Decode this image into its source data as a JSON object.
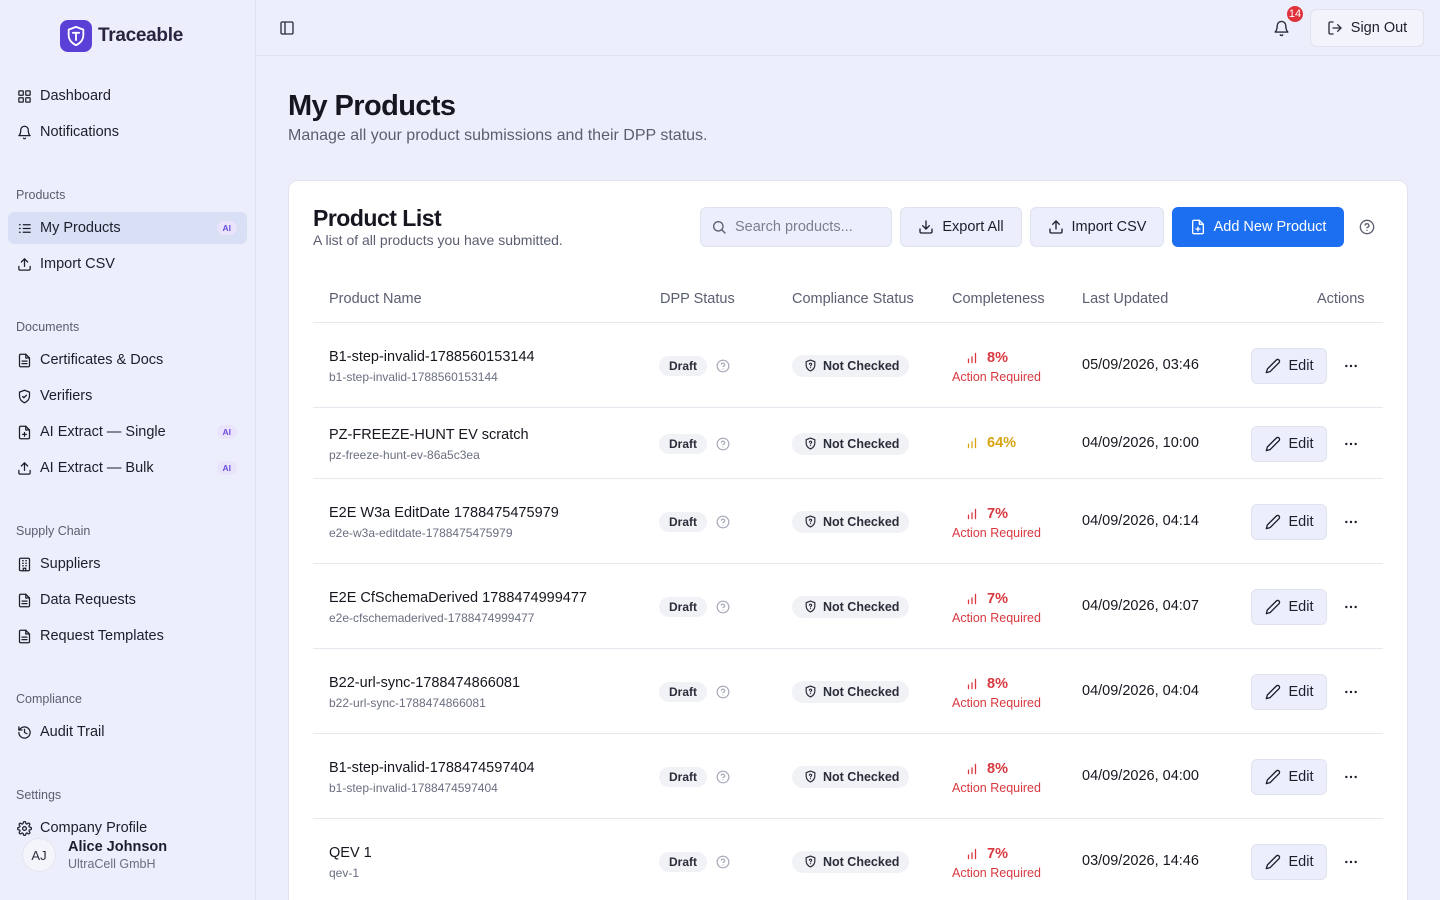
{
  "brand": {
    "name": "Traceable"
  },
  "nav": {
    "top": [
      {
        "label": "Dashboard",
        "icon": "grid-icon"
      },
      {
        "label": "Notifications",
        "icon": "bell-icon"
      }
    ],
    "sections": [
      {
        "label": "Products",
        "items": [
          {
            "label": "My Products",
            "icon": "list-icon",
            "badge": "AI",
            "active": true
          },
          {
            "label": "Import CSV",
            "icon": "upload-icon"
          }
        ]
      },
      {
        "label": "Documents",
        "items": [
          {
            "label": "Certificates & Docs",
            "icon": "document-icon"
          },
          {
            "label": "Verifiers",
            "icon": "shield-icon"
          },
          {
            "label": "AI Extract — Single",
            "icon": "file-plus-icon",
            "badge": "AI"
          },
          {
            "label": "AI Extract — Bulk",
            "icon": "upload-icon",
            "badge": "AI"
          }
        ]
      },
      {
        "label": "Supply Chain",
        "items": [
          {
            "label": "Suppliers",
            "icon": "building-icon"
          },
          {
            "label": "Data Requests",
            "icon": "document-icon"
          },
          {
            "label": "Request Templates",
            "icon": "document-icon"
          }
        ]
      },
      {
        "label": "Compliance",
        "items": [
          {
            "label": "Audit Trail",
            "icon": "history-icon"
          }
        ]
      },
      {
        "label": "Settings",
        "items": [
          {
            "label": "Company Profile",
            "icon": "gear-icon"
          }
        ]
      }
    ]
  },
  "user": {
    "initials": "AJ",
    "name": "Alice Johnson",
    "company": "UltraCell GmbH"
  },
  "topbar": {
    "notification_count": "14",
    "sign_out": "Sign Out"
  },
  "page": {
    "title": "My Products",
    "subtitle": "Manage all your product submissions and their DPP status."
  },
  "card": {
    "title": "Product List",
    "subtitle": "A list of all products you have submitted.",
    "search_placeholder": "Search products...",
    "export_label": "Export All",
    "import_label": "Import CSV",
    "add_label": "Add New Product"
  },
  "table": {
    "headers": [
      "Product Name",
      "DPP Status",
      "Compliance Status",
      "Completeness",
      "Last Updated",
      "Actions"
    ],
    "edit_label": "Edit",
    "action_required_label": "Action Required",
    "colors": {
      "low": "#d9383f",
      "mid": "#d9a412"
    },
    "rows": [
      {
        "name": "B1-step-invalid-1788560153144",
        "slug": "b1-step-invalid-1788560153144",
        "dpp": "Draft",
        "compliance": "Not Checked",
        "completeness": "8%",
        "level": "low",
        "action_required": true,
        "updated": "05/09/2026, 03:46"
      },
      {
        "name": "PZ-FREEZE-HUNT EV scratch",
        "slug": "pz-freeze-hunt-ev-86a5c3ea",
        "dpp": "Draft",
        "compliance": "Not Checked",
        "completeness": "64%",
        "level": "mid",
        "action_required": false,
        "updated": "04/09/2026, 10:00"
      },
      {
        "name": "E2E W3a EditDate 1788475475979",
        "slug": "e2e-w3a-editdate-1788475475979",
        "dpp": "Draft",
        "compliance": "Not Checked",
        "completeness": "7%",
        "level": "low",
        "action_required": true,
        "updated": "04/09/2026, 04:14"
      },
      {
        "name": "E2E CfSchemaDerived 1788474999477",
        "slug": "e2e-cfschemaderived-1788474999477",
        "dpp": "Draft",
        "compliance": "Not Checked",
        "completeness": "7%",
        "level": "low",
        "action_required": true,
        "updated": "04/09/2026, 04:07"
      },
      {
        "name": "B22-url-sync-1788474866081",
        "slug": "b22-url-sync-1788474866081",
        "dpp": "Draft",
        "compliance": "Not Checked",
        "completeness": "8%",
        "level": "low",
        "action_required": true,
        "updated": "04/09/2026, 04:04"
      },
      {
        "name": "B1-step-invalid-1788474597404",
        "slug": "b1-step-invalid-1788474597404",
        "dpp": "Draft",
        "compliance": "Not Checked",
        "completeness": "8%",
        "level": "low",
        "action_required": true,
        "updated": "04/09/2026, 04:00"
      },
      {
        "name": "QEV 1",
        "slug": "qev-1",
        "dpp": "Draft",
        "compliance": "Not Checked",
        "completeness": "7%",
        "level": "low",
        "action_required": true,
        "updated": "03/09/2026, 14:46"
      }
    ]
  }
}
